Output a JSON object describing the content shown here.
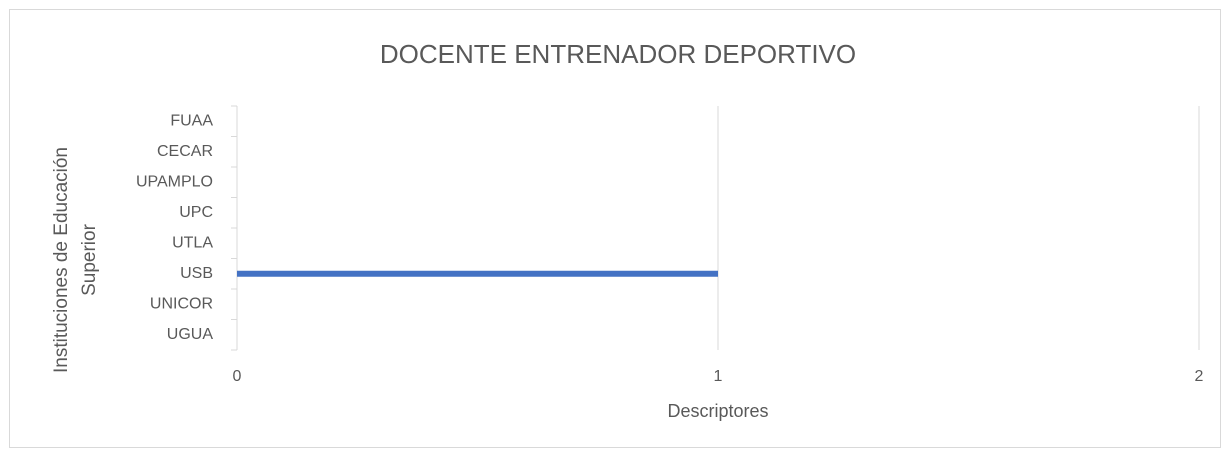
{
  "chart_data": {
    "type": "hbar",
    "title": "DOCENTE ENTRENADOR DEPORTIVO",
    "x_label": "Descriptores",
    "y_label": "Instituciones de Educación Superior",
    "categories": [
      "UGUA",
      "UNICOR",
      "USB",
      "UTLA",
      "UPC",
      "UPAMPLO",
      "CECAR",
      "FUAA"
    ],
    "values": [
      0,
      0,
      1,
      0,
      0,
      0,
      0,
      0
    ],
    "color": "#4472c4",
    "xlim": [
      0,
      2
    ],
    "xticks": [
      0,
      1,
      2
    ],
    "grid": true
  }
}
